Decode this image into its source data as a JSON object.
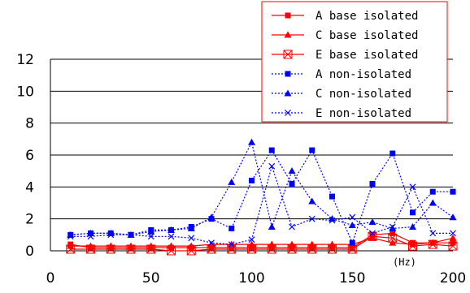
{
  "chart_data": {
    "type": "line",
    "xlabel": "(Hz)",
    "ylabel": "",
    "xlim": [
      0,
      200
    ],
    "ylim": [
      0,
      12
    ],
    "x_ticks": [
      "0",
      "50",
      "100",
      "150",
      "200"
    ],
    "y_ticks": [
      "0",
      "2",
      "4",
      "6",
      "8",
      "10",
      "12"
    ],
    "grid": "horizontal",
    "legend_position": "top-right",
    "colors": {
      "base_isolated": "#ff0000",
      "non_isolated": "#0000ff"
    },
    "series": [
      {
        "name": "A base isolated",
        "color": "#ff0000",
        "dash": false,
        "marker": "square",
        "x": [
          10,
          20,
          30,
          40,
          50,
          60,
          70,
          80,
          90,
          100,
          110,
          120,
          130,
          140,
          150,
          160,
          170,
          180,
          190,
          200
        ],
        "y": [
          0.4,
          0.2,
          0.2,
          0.2,
          0.2,
          0.2,
          0.2,
          0.2,
          0.2,
          0.2,
          0.2,
          0.2,
          0.2,
          0.2,
          0.2,
          1.0,
          1.1,
          0.5,
          0.5,
          0.5
        ]
      },
      {
        "name": "C base isolated",
        "color": "#ff0000",
        "dash": false,
        "marker": "triangle",
        "x": [
          10,
          20,
          30,
          40,
          50,
          60,
          70,
          80,
          90,
          100,
          110,
          120,
          130,
          140,
          150,
          160,
          170,
          180,
          190,
          200
        ],
        "y": [
          0.3,
          0.3,
          0.3,
          0.3,
          0.3,
          0.3,
          0.3,
          0.4,
          0.4,
          0.4,
          0.4,
          0.4,
          0.4,
          0.4,
          0.4,
          0.8,
          0.5,
          0.4,
          0.5,
          0.8
        ]
      },
      {
        "name": "E base isolated",
        "color": "#ff0000",
        "dash": false,
        "marker": "xsquare",
        "x": [
          10,
          20,
          30,
          40,
          50,
          60,
          70,
          80,
          90,
          100,
          110,
          120,
          130,
          140,
          150,
          160,
          170,
          180,
          190,
          200
        ],
        "y": [
          0.1,
          0.1,
          0.1,
          0.1,
          0.1,
          0.0,
          0.0,
          0.1,
          0.1,
          0.1,
          0.1,
          0.1,
          0.1,
          0.1,
          0.1,
          0.9,
          0.8,
          0.3,
          0.4,
          0.3
        ]
      },
      {
        "name": "A non-isolated",
        "color": "#0000ff",
        "dash": true,
        "marker": "square",
        "x": [
          10,
          20,
          30,
          40,
          50,
          60,
          70,
          80,
          90,
          100,
          110,
          120,
          130,
          140,
          150,
          160,
          170,
          180,
          190,
          200
        ],
        "y": [
          1.0,
          1.1,
          1.1,
          1.0,
          1.3,
          1.3,
          1.5,
          2.0,
          1.4,
          4.4,
          6.3,
          4.2,
          6.3,
          3.4,
          0.5,
          4.2,
          6.1,
          2.4,
          3.7,
          3.7
        ]
      },
      {
        "name": "C non-isolated",
        "color": "#0000ff",
        "dash": true,
        "marker": "triangle",
        "x": [
          10,
          20,
          30,
          40,
          50,
          60,
          70,
          80,
          90,
          100,
          110,
          120,
          130,
          140,
          150,
          160,
          170,
          180,
          190,
          200
        ],
        "y": [
          1.0,
          1.1,
          1.1,
          1.0,
          1.2,
          1.3,
          1.4,
          2.1,
          4.3,
          6.8,
          1.5,
          5.0,
          3.1,
          2.0,
          1.6,
          1.8,
          1.4,
          1.5,
          3.0,
          2.1
        ]
      },
      {
        "name": "E non-isolated",
        "color": "#0000ff",
        "dash": true,
        "marker": "x",
        "x": [
          10,
          20,
          30,
          40,
          50,
          60,
          70,
          80,
          90,
          100,
          110,
          120,
          130,
          140,
          150,
          160,
          170,
          180,
          190,
          200
        ],
        "y": [
          0.9,
          0.9,
          1.0,
          1.0,
          0.9,
          0.9,
          0.8,
          0.5,
          0.4,
          0.7,
          5.3,
          1.5,
          2.0,
          1.9,
          2.1,
          1.1,
          1.5,
          4.0,
          1.1,
          1.1
        ]
      }
    ]
  }
}
